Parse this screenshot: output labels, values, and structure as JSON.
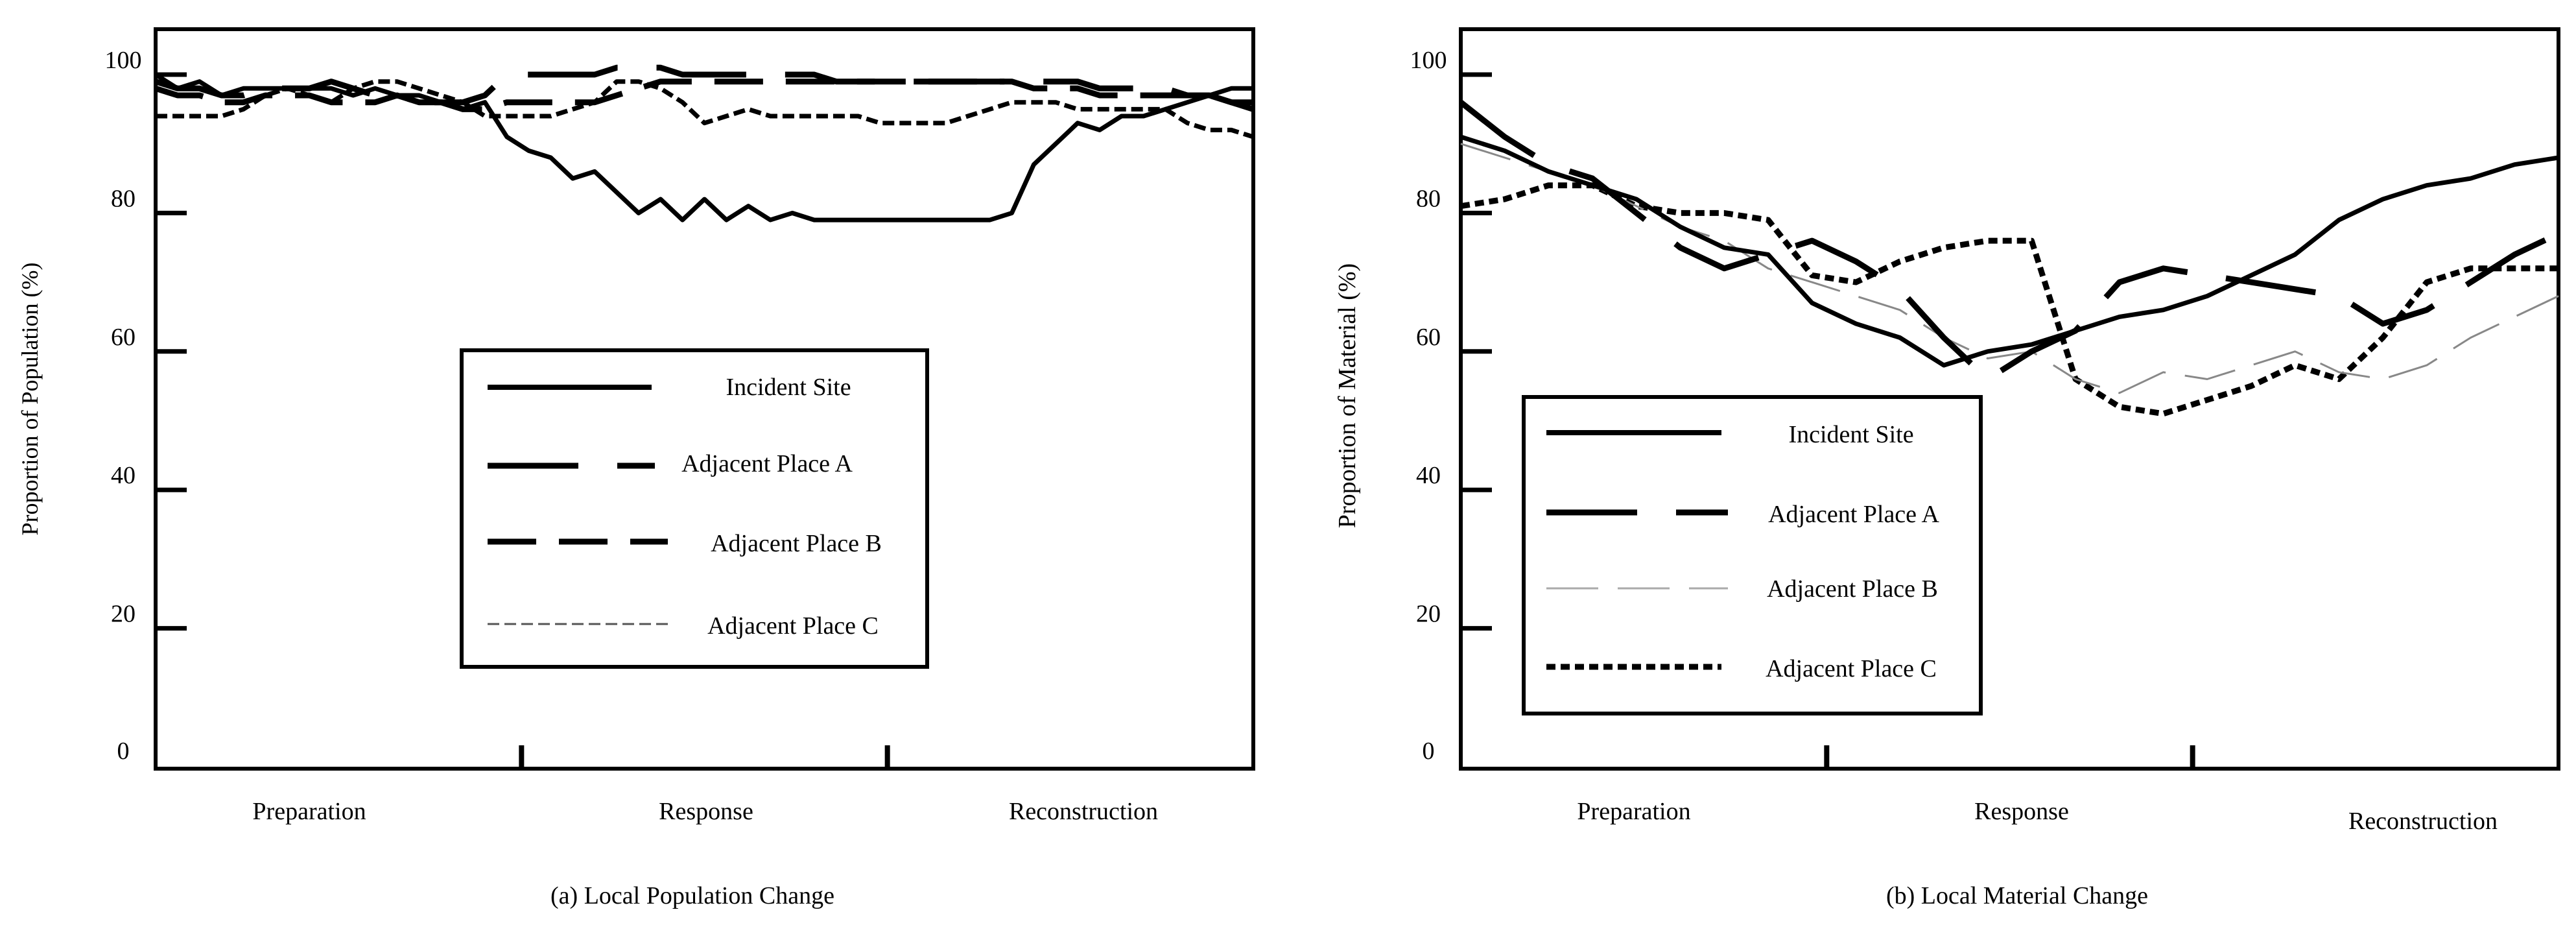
{
  "chart_data": [
    {
      "type": "line",
      "title": "(a) Local Population Change",
      "xlabel": "",
      "ylabel": "Proportion of Population (%)",
      "ylim": [
        0,
        100
      ],
      "yticks": [
        "0",
        "20",
        "40",
        "60",
        "80",
        "100"
      ],
      "categories": [
        "Preparation",
        "Response",
        "Reconstruction"
      ],
      "legend": {
        "placement": "center",
        "entries": [
          "Incident Site",
          "Adjacent Place A",
          "Adjacent Place B",
          "Adjacent Place C"
        ]
      },
      "x": [
        0,
        2,
        4,
        6,
        8,
        10,
        12,
        14,
        16,
        18,
        20,
        22,
        24,
        26,
        28,
        30,
        32,
        34,
        36,
        38,
        40,
        42,
        44,
        46,
        48,
        50,
        52,
        54,
        56,
        58,
        60,
        62,
        64,
        66,
        68,
        70,
        72,
        74,
        76,
        78,
        80,
        82,
        84,
        86,
        88,
        90,
        92,
        94,
        96,
        98,
        100
      ],
      "series": [
        {
          "name": "Incident Site",
          "style": "solid",
          "values": [
            100,
            98,
            99,
            97,
            98,
            98,
            98,
            98,
            98,
            97,
            98,
            97,
            97,
            96,
            95,
            96,
            91,
            89,
            88,
            85,
            86,
            83,
            80,
            82,
            79,
            82,
            79,
            81,
            79,
            80,
            79,
            79,
            79,
            79,
            79,
            79,
            79,
            79,
            79,
            80,
            87,
            90,
            93,
            92,
            94,
            94,
            95,
            96,
            97,
            98,
            98
          ]
        },
        {
          "name": "Adjacent Place A",
          "style": "long-dash",
          "values": [
            99,
            98,
            98,
            97,
            97,
            98,
            98,
            98,
            99,
            98,
            97,
            97,
            96,
            96,
            96,
            97,
            100,
            100,
            100,
            100,
            100,
            101,
            101,
            101,
            100,
            100,
            100,
            100,
            100,
            100,
            100,
            99,
            99,
            99,
            99,
            99,
            99,
            99,
            99,
            99,
            99,
            99,
            99,
            98,
            98,
            98,
            98,
            97,
            97,
            96,
            95
          ]
        },
        {
          "name": "Adjacent Place B",
          "style": "dash",
          "values": [
            98,
            97,
            97,
            96,
            96,
            97,
            97,
            97,
            96,
            96,
            96,
            97,
            96,
            96,
            95,
            95,
            96,
            96,
            96,
            96,
            96,
            97,
            98,
            99,
            99,
            99,
            99,
            99,
            99,
            99,
            99,
            99,
            99,
            99,
            99,
            99,
            99,
            99,
            99,
            99,
            98,
            98,
            98,
            97,
            97,
            97,
            97,
            97,
            97,
            96,
            96
          ]
        },
        {
          "name": "Adjacent Place C",
          "style": "short-dash",
          "values": [
            94,
            94,
            94,
            94,
            95,
            97,
            98,
            97,
            96,
            98,
            99,
            99,
            98,
            97,
            96,
            94,
            94,
            94,
            94,
            95,
            96,
            99,
            99,
            98,
            96,
            93,
            94,
            95,
            94,
            94,
            94,
            94,
            94,
            93,
            93,
            93,
            93,
            94,
            95,
            96,
            96,
            96,
            95,
            95,
            95,
            95,
            95,
            93,
            92,
            92,
            91
          ]
        }
      ]
    },
    {
      "type": "line",
      "title": "(b) Local Material Change",
      "xlabel": "",
      "ylabel": "Proportion of Material (%)",
      "ylim": [
        0,
        100
      ],
      "yticks": [
        "0",
        "20",
        "40",
        "60",
        "80",
        "100"
      ],
      "categories": [
        "Preparation",
        "Response",
        "Reconstruction"
      ],
      "legend": {
        "placement": "center-left",
        "entries": [
          "Incident Site",
          "Adjacent Place A",
          "Adjacent Place B",
          "Adjacent Place C"
        ]
      },
      "x": [
        0,
        4,
        8,
        12,
        16,
        20,
        24,
        28,
        32,
        36,
        40,
        44,
        48,
        52,
        56,
        60,
        64,
        68,
        72,
        76,
        80,
        84,
        88,
        92,
        96,
        100
      ],
      "series": [
        {
          "name": "Incident Site",
          "style": "solid",
          "values": [
            91,
            89,
            86,
            84,
            82,
            78,
            75,
            74,
            67,
            64,
            62,
            58,
            60,
            61,
            63,
            65,
            66,
            68,
            71,
            74,
            79,
            82,
            84,
            85,
            87,
            88
          ]
        },
        {
          "name": "Adjacent Place A",
          "style": "long-dash",
          "values": [
            96,
            91,
            87,
            85,
            80,
            75,
            72,
            74,
            76,
            73,
            69,
            62,
            56,
            60,
            63,
            70,
            72,
            71,
            70,
            69,
            68,
            64,
            66,
            70,
            74,
            77
          ]
        },
        {
          "name": "Adjacent Place B",
          "style": "thin-dash",
          "values": [
            90,
            88,
            86,
            84,
            81,
            78,
            76,
            72,
            70,
            68,
            66,
            62,
            59,
            60,
            56,
            54,
            57,
            56,
            58,
            60,
            57,
            56,
            58,
            62,
            65,
            68
          ]
        },
        {
          "name": "Adjacent Place C",
          "style": "dotted",
          "values": [
            81,
            82,
            84,
            84,
            81,
            80,
            80,
            79,
            71,
            70,
            73,
            75,
            76,
            76,
            56,
            52,
            51,
            53,
            55,
            58,
            56,
            62,
            70,
            72,
            72,
            72
          ]
        }
      ]
    }
  ]
}
